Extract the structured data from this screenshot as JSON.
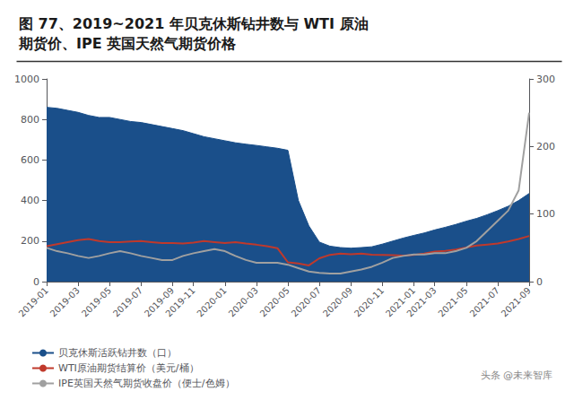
{
  "chart_data": {
    "type": "line",
    "title": "图 77、2019~2021 年贝克休斯钻井数与 WTI 原油\n期货价、IPE 英国天然气期货价格",
    "annotations": [
      "头条 @未来智库"
    ],
    "categories": [
      "2019-01",
      null,
      null,
      "2019-03",
      null,
      null,
      "2019-05",
      null,
      null,
      "2019-07",
      null,
      null,
      "2019-09",
      null,
      "2019-11",
      null,
      null,
      "2020-01",
      null,
      null,
      "2020-03",
      null,
      null,
      "2020-05",
      null,
      null,
      "2020-07",
      null,
      null,
      "2020-09",
      null,
      null,
      "2020-11",
      null,
      null,
      "2021-01",
      null,
      "2021-03",
      null,
      null,
      "2021-05",
      null,
      null,
      "2021-07",
      null,
      null,
      "2021-09"
    ],
    "series": [
      {
        "name": "贝克休斯活跃钻井数（口）",
        "type": "area",
        "color": "#1a4f8a",
        "values": [
          860,
          855,
          845,
          835,
          820,
          810,
          810,
          800,
          790,
          785,
          775,
          765,
          755,
          745,
          730,
          715,
          705,
          695,
          685,
          678,
          672,
          665,
          658,
          648,
          400,
          275,
          195,
          175,
          168,
          165,
          168,
          172,
          185,
          200,
          215,
          228,
          240,
          255,
          268,
          282,
          298,
          312,
          330,
          350,
          372,
          400,
          435
        ]
      },
      {
        "name": "WTI原油期货结算价（美元/桶）",
        "type": "line",
        "color": "#c0392b",
        "values": [
          175,
          185,
          195,
          205,
          210,
          200,
          195,
          195,
          198,
          200,
          195,
          190,
          190,
          188,
          192,
          200,
          195,
          190,
          195,
          188,
          182,
          175,
          165,
          95,
          90,
          80,
          115,
          132,
          138,
          135,
          138,
          133,
          132,
          130,
          128,
          132,
          138,
          148,
          152,
          158,
          168,
          178,
          183,
          188,
          198,
          210,
          225
        ]
      },
      {
        "name": "IPE英国天然气期货收盘价（便士/色姆）",
        "type": "line",
        "color": "#a0a0a0",
        "axis": "y2",
        "values": [
          50,
          45,
          42,
          38,
          35,
          38,
          42,
          45,
          42,
          38,
          35,
          32,
          32,
          38,
          42,
          45,
          48,
          45,
          38,
          32,
          28,
          28,
          28,
          25,
          20,
          15,
          13,
          12,
          12,
          15,
          18,
          22,
          28,
          35,
          38,
          40,
          40,
          42,
          42,
          45,
          50,
          60,
          75,
          90,
          105,
          135,
          250
        ]
      }
    ],
    "ylim": [
      0,
      1000
    ],
    "yticks": [
      0,
      200,
      400,
      600,
      800,
      1000
    ],
    "y2lim": [
      0,
      300
    ],
    "y2ticks": [
      0,
      100,
      200,
      300
    ],
    "grid": false,
    "legend": "lower left"
  }
}
